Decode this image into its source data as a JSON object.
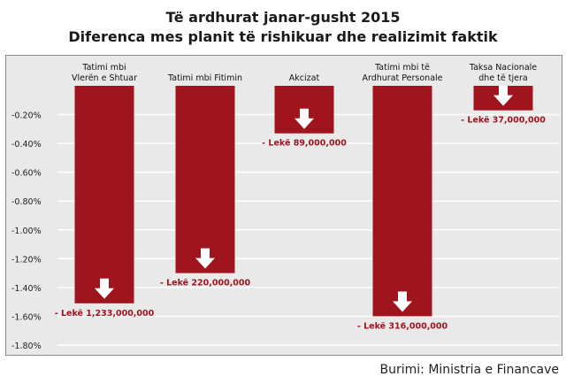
{
  "chart_data": {
    "type": "bar",
    "title": "Të ardhurat janar-gusht 2015",
    "subtitle": "Diferenca mes planit të rishikuar dhe realizimit faktik",
    "categories": [
      [
        "Tatimi mbi",
        "Vlerën e Shtuar"
      ],
      [
        "Tatimi mbi Fitimin"
      ],
      [
        "Akcizat"
      ],
      [
        "Tatimi mbi të",
        "Ardhurat Personale"
      ],
      [
        "Taksa Nacionale",
        "dhe të tjera"
      ]
    ],
    "values": [
      -1.51,
      -1.3,
      -0.33,
      -1.6,
      -0.17
    ],
    "value_labels": [
      "- Lekë 1,233,000,000",
      "- Lekë 220,000,000",
      "- Lekë 89,000,000",
      "- Lekë 316,000,000",
      "- Lekë 37,000,000"
    ],
    "ylim": [
      -1.8,
      0
    ],
    "yticks": [
      "-0.20%",
      "-0.40%",
      "-0.60%",
      "-0.80%",
      "-1.00%",
      "-1.20%",
      "-1.40%",
      "-1.60%",
      "-1.80%"
    ],
    "ytick_values": [
      -0.2,
      -0.4,
      -0.6,
      -0.8,
      -1.0,
      -1.2,
      -1.4,
      -1.6,
      -1.8
    ],
    "grid": true,
    "bar_color": "#a0141e",
    "label_color": "#a0141e",
    "arrow_color": "#ffffff",
    "grid_color": "#ffffff"
  },
  "source": "Burimi: Ministria e Financave"
}
